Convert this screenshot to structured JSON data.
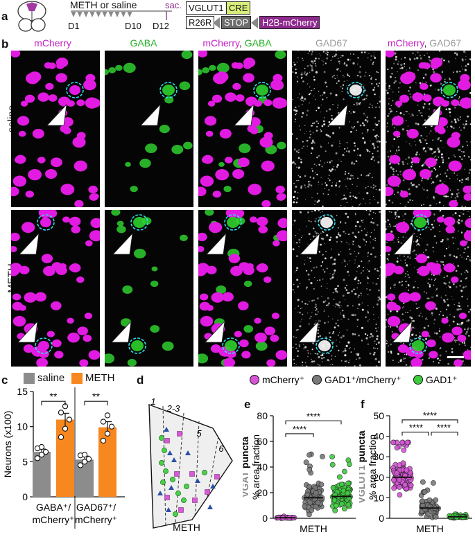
{
  "panel_a": {
    "label": "a",
    "treatment": "METH or saline",
    "sac": "sac.",
    "d1": "D1",
    "d10": "D10",
    "d12": "D12",
    "vglut1": "VGLUT1",
    "cre": "CRE",
    "r26r": "R26R",
    "stop": "STOP",
    "h2b": "H2B-mCherry"
  },
  "panel_b": {
    "label": "b",
    "columns": [
      {
        "parts": [
          "mCherry",
          "",
          ""
        ],
        "colors": [
          "#c61fc6",
          "",
          ""
        ]
      },
      {
        "parts": [
          "GABA",
          "",
          ""
        ],
        "colors": [
          "#22b022",
          "",
          ""
        ]
      },
      {
        "parts": [
          "mCherry",
          ", ",
          "GABA"
        ],
        "colors": [
          "#c61fc6",
          "#222222",
          "#22b022"
        ]
      },
      {
        "parts": [
          "GAD67",
          "",
          ""
        ],
        "colors": [
          "#9a9a9a",
          "",
          ""
        ]
      },
      {
        "parts": [
          "mCherry",
          ", ",
          "GAD67"
        ],
        "colors": [
          "#c61fc6",
          "#222222",
          "#9a9a9a"
        ]
      }
    ],
    "rows": [
      "saline",
      "METH"
    ]
  },
  "panel_c": {
    "label": "c",
    "legend": [
      "saline",
      "METH"
    ],
    "ylabel": "Neurons (x100)",
    "sig": [
      "**",
      "**"
    ]
  },
  "panel_d": {
    "label": "d",
    "layers": [
      "1",
      "2-3",
      "5",
      "6"
    ],
    "xlabel": "METH"
  },
  "legend_top": [
    "mCherry⁺",
    "GAD1⁺/mCherry⁺",
    "GAD1⁺"
  ],
  "panel_e": {
    "label": "e",
    "ylabel_a": "VGAT",
    "ylabel_b": " puncta",
    "ylabel2": "% area fraction",
    "xlabel": "METH",
    "sig": [
      "****",
      "****"
    ]
  },
  "panel_f": {
    "label": "f",
    "ylabel_a": "VGLUT1",
    "ylabel_b": " puncta",
    "ylabel2": "% area fraction",
    "xlabel": "METH",
    "sig": [
      "****",
      "****",
      "****"
    ]
  },
  "colors": {
    "saline": "#8c8c8c",
    "meth": "#f7871f",
    "mcherry": "#d655d6",
    "gad_mcherry": "#7a7a7a",
    "gad1": "#3fcc3f"
  },
  "chart_data": [
    {
      "type": "bar",
      "categories": [
        "GABA⁺/ mCherry⁺",
        "GAD67⁺/ mCherry⁺"
      ],
      "series": [
        {
          "name": "saline",
          "values": [
            6.4,
            5.3
          ],
          "sem": [
            0.4,
            0.5
          ]
        },
        {
          "name": "METH",
          "values": [
            11.0,
            9.9
          ],
          "sem": [
            0.9,
            0.8
          ]
        }
      ],
      "ylim": [
        0,
        15
      ],
      "yticks": [
        0,
        5,
        10,
        15
      ],
      "points": {
        "saline": [
          [
            5.5,
            6.0,
            6.4,
            6.9,
            7.1
          ],
          [
            4.5,
            5.0,
            5.4,
            5.9,
            6.0
          ]
        ],
        "METH": [
          [
            8.5,
            9.7,
            11.0,
            12.0,
            12.9
          ],
          [
            8.0,
            9.0,
            10.0,
            10.7,
            11.6
          ]
        ]
      }
    },
    {
      "type": "scatter",
      "categories": [
        "mCherry⁺",
        "GAD1⁺/mCherry⁺",
        "GAD1⁺"
      ],
      "means": [
        0.4,
        16.0,
        17.0
      ],
      "ylim": [
        0,
        80
      ],
      "yticks": [
        0,
        20,
        40,
        60,
        80
      ]
    },
    {
      "type": "scatter",
      "categories": [
        "mCherry⁺",
        "GAD1⁺/mCherry⁺",
        "GAD1⁺"
      ],
      "means": [
        20.0,
        5.0,
        0.7
      ],
      "ylim": [
        0,
        50
      ],
      "yticks": [
        0,
        10,
        20,
        30,
        40,
        50
      ]
    }
  ]
}
